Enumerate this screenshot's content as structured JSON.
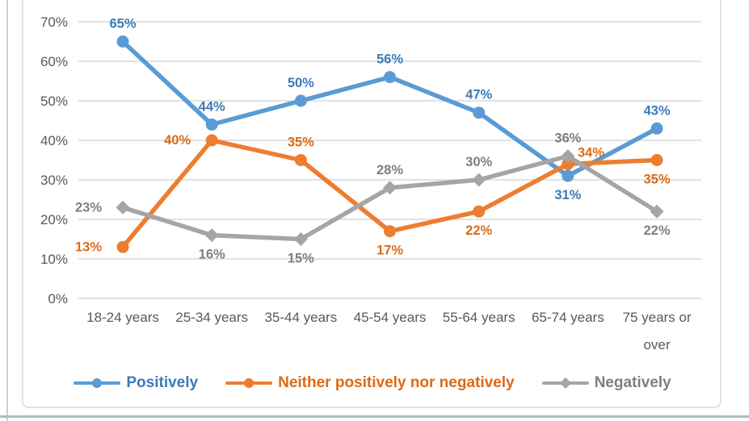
{
  "chart_data": {
    "type": "line",
    "title": "",
    "categories": [
      "18-24 years",
      "25-34 years",
      "35-44 years",
      "45-54 years",
      "55-64 years",
      "65-74 years",
      "75 years or over"
    ],
    "y_axis": {
      "min": 0,
      "max": 70,
      "step": 10,
      "suffix": "%",
      "tick_labels": [
        "0%",
        "10%",
        "20%",
        "30%",
        "40%",
        "50%",
        "60%",
        "70%"
      ]
    },
    "grid": true,
    "legend_position": "bottom",
    "data_label_suffix": "%",
    "colors": {
      "grid": "#d9d9d9",
      "axis_text": "#595959"
    },
    "series": [
      {
        "name": "Positively",
        "color": "#5B9BD5",
        "label_color": "#3D7AB8",
        "marker": "circle",
        "values": [
          65,
          44,
          50,
          56,
          47,
          31,
          43
        ],
        "label_positions": [
          "above",
          "above",
          "above",
          "above",
          "above",
          "below",
          "above"
        ]
      },
      {
        "name": "Neither positively nor negatively",
        "color": "#ED7D31",
        "label_color": "#DC6A15",
        "marker": "circle",
        "values": [
          13,
          40,
          35,
          17,
          22,
          34,
          35
        ],
        "label_positions": [
          "left",
          "left",
          "above",
          "below",
          "below",
          "right-above",
          "below"
        ]
      },
      {
        "name": "Negatively",
        "color": "#A5A5A5",
        "label_color": "#7F7F7F",
        "marker": "diamond",
        "values": [
          23,
          16,
          15,
          28,
          30,
          36,
          22
        ],
        "label_positions": [
          "left",
          "below",
          "below",
          "above",
          "above",
          "above",
          "below"
        ]
      }
    ]
  }
}
